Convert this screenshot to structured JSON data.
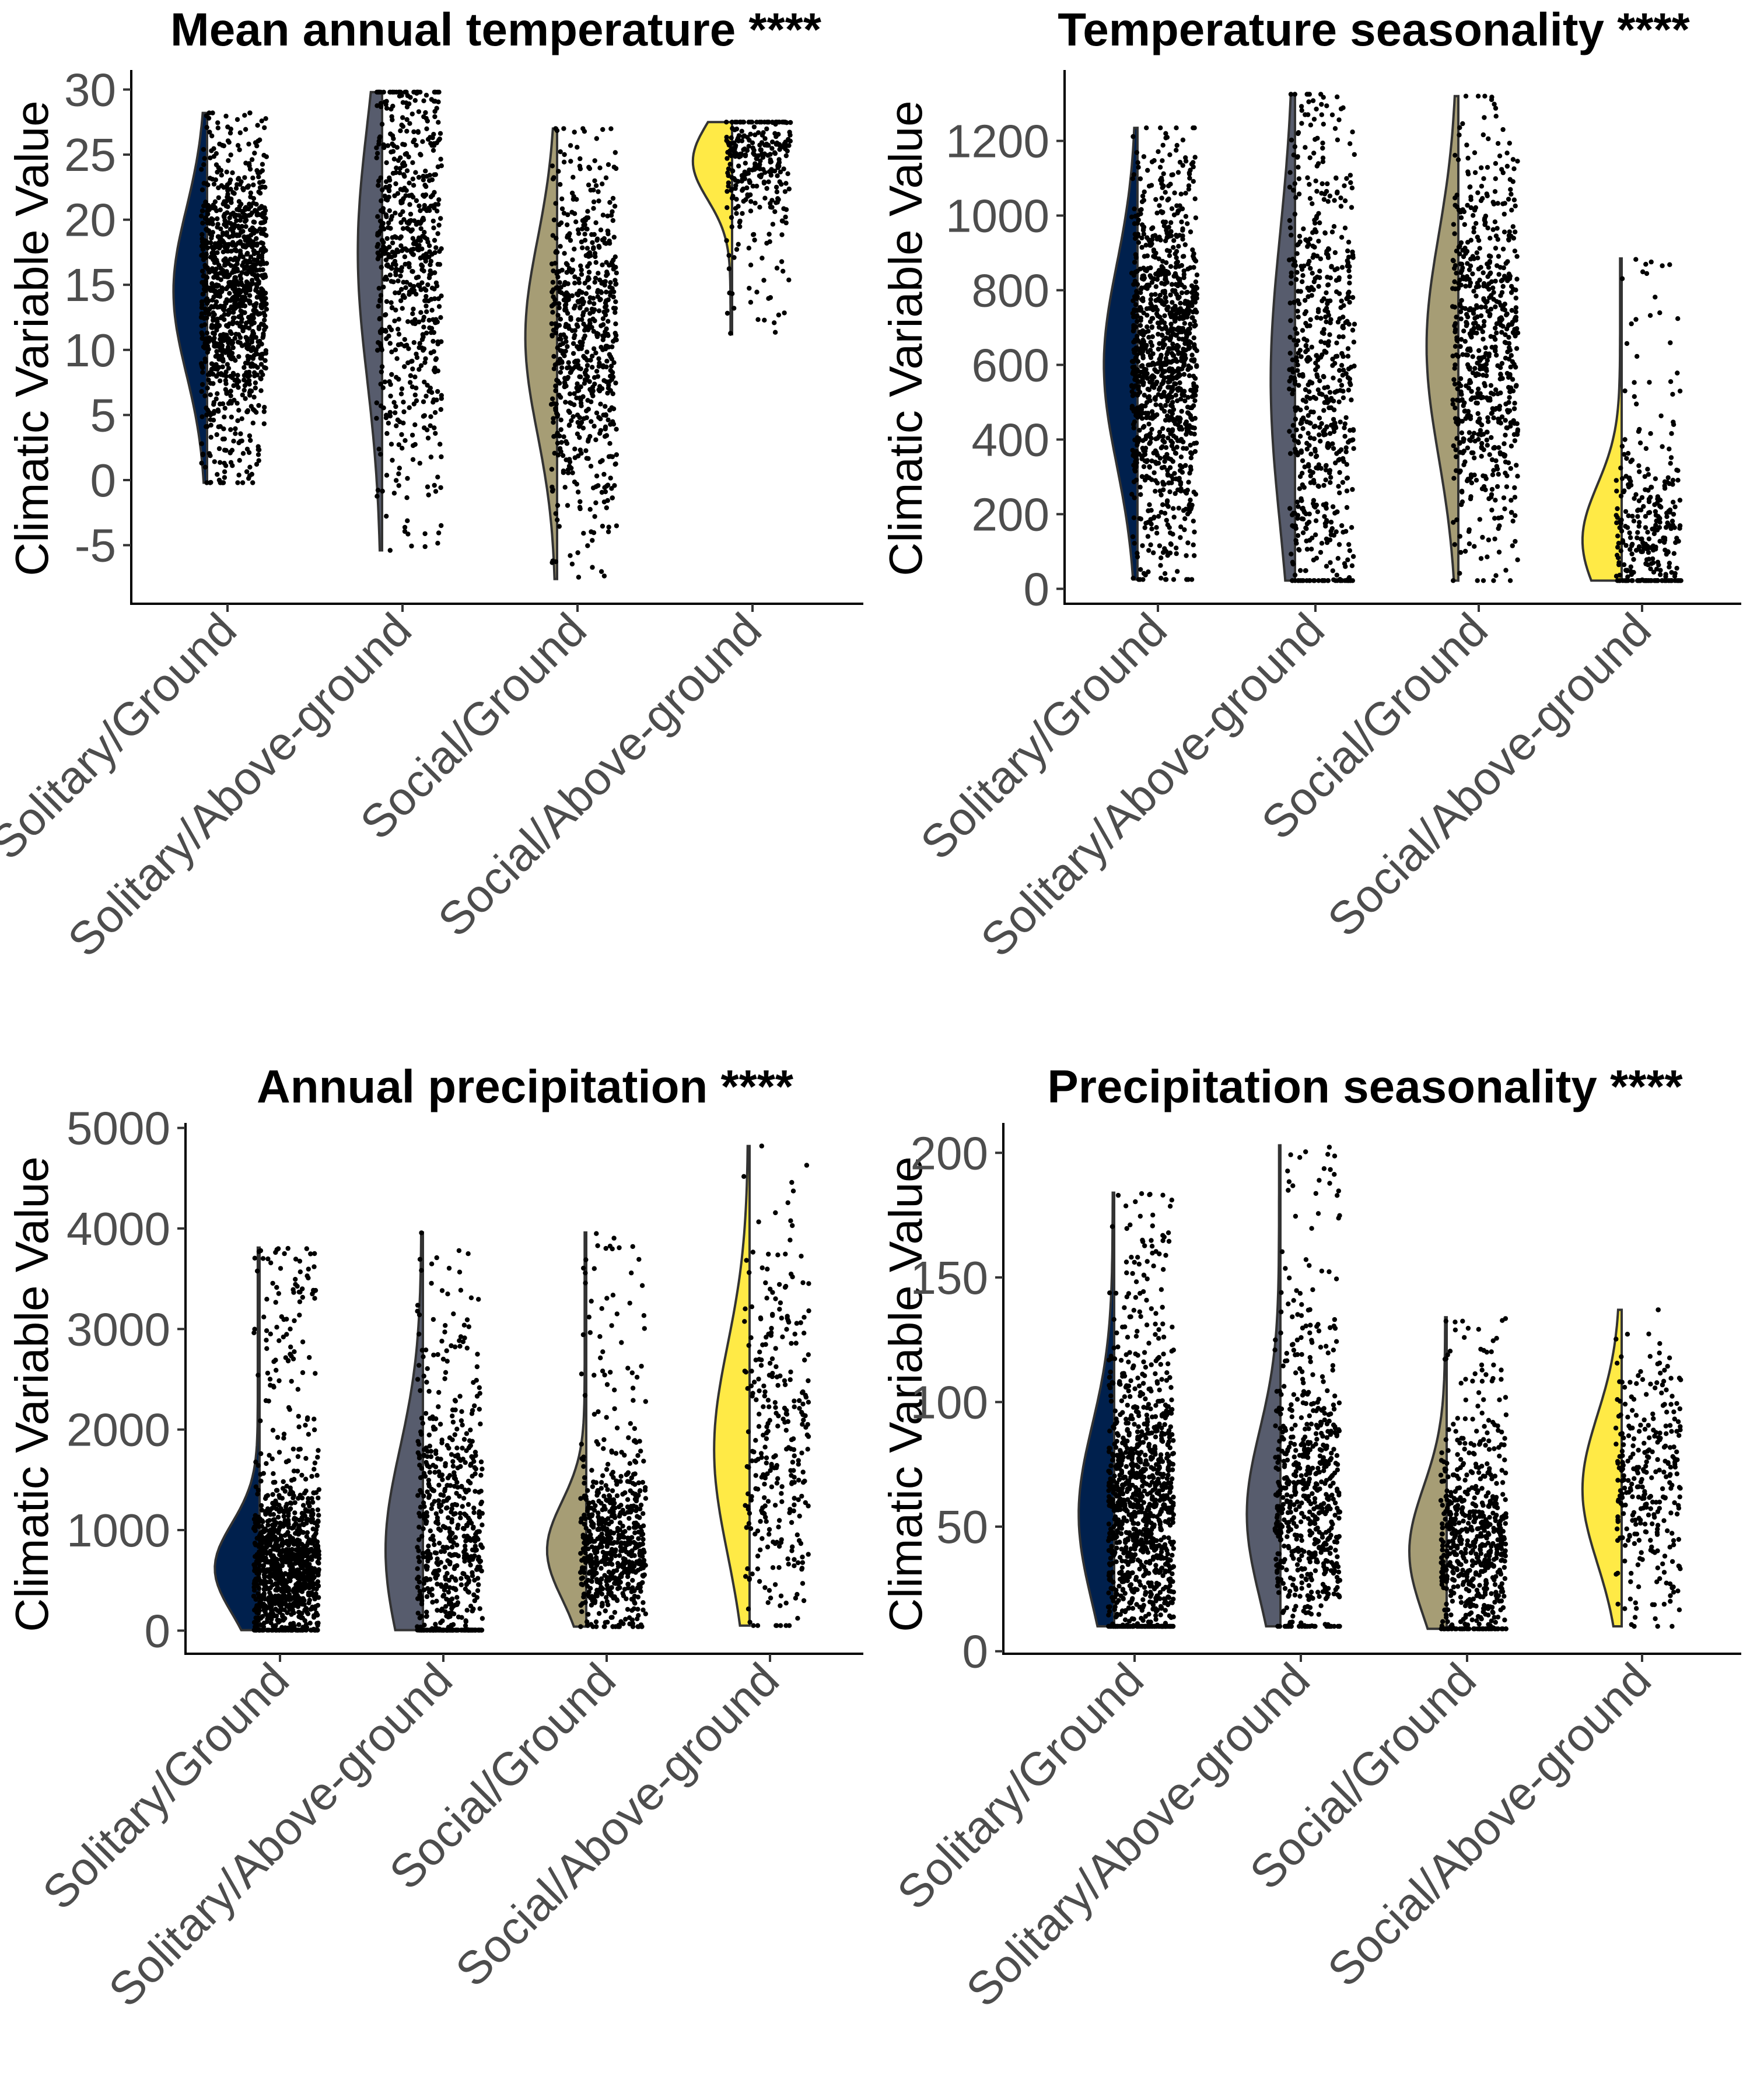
{
  "figure": {
    "categories": [
      "Solitary/Ground",
      "Solitary/Above-ground",
      "Social/Ground",
      "Social/Above-ground"
    ],
    "fill_colors": [
      "#00204d",
      "#575c6d",
      "#a69d75",
      "#ffea46"
    ]
  },
  "chart_data": [
    {
      "type": "violin",
      "title": "Mean annual temperature ****",
      "ylabel": "Climatic Variable Value",
      "xlabel": "",
      "ylim": [
        -9.5,
        31.5
      ],
      "yticks": [
        -5,
        0,
        5,
        10,
        15,
        20,
        25,
        30
      ],
      "ytick_labels": [
        "-5",
        "0",
        "5",
        "10",
        "15",
        "20",
        "25",
        "30"
      ],
      "series": [
        {
          "category": "Solitary/Ground",
          "min": -0.2,
          "max": 28.2,
          "median": 14.5,
          "q1": 10.5,
          "q3": 19.0,
          "n_points": 1100
        },
        {
          "category": "Solitary/Above-ground",
          "min": -5.4,
          "max": 29.8,
          "median": 17.5,
          "q1": 10.5,
          "q3": 23.5,
          "n_points": 650
        },
        {
          "category": "Social/Ground",
          "min": -7.6,
          "max": 27.0,
          "median": 11.0,
          "q1": 7.5,
          "q3": 17.5,
          "n_points": 650
        },
        {
          "category": "Social/Above-ground",
          "min": 11.2,
          "max": 27.5,
          "median": 24.5,
          "q1": 21.5,
          "q3": 25.5,
          "n_points": 300
        }
      ]
    },
    {
      "type": "violin",
      "title": "Temperature seasonality ****",
      "ylabel": "Climatic Variable Value",
      "xlabel": "",
      "ylim": [
        -40,
        1390
      ],
      "yticks": [
        0,
        200,
        400,
        600,
        800,
        1000,
        1200
      ],
      "ytick_labels": [
        "0",
        "200",
        "400",
        "600",
        "800",
        "1000",
        "1200"
      ],
      "series": [
        {
          "category": "Solitary/Ground",
          "min": 25,
          "max": 1235,
          "median": 600,
          "q1": 400,
          "q3": 760,
          "n_points": 1100
        },
        {
          "category": "Solitary/Above-ground",
          "min": 22,
          "max": 1325,
          "median": 560,
          "q1": 200,
          "q3": 720,
          "n_points": 650
        },
        {
          "category": "Social/Ground",
          "min": 22,
          "max": 1320,
          "median": 650,
          "q1": 420,
          "q3": 820,
          "n_points": 650
        },
        {
          "category": "Social/Above-ground",
          "min": 22,
          "max": 885,
          "median": 130,
          "q1": 60,
          "q3": 260,
          "n_points": 300
        }
      ]
    },
    {
      "type": "violin",
      "title": "Annual precipitation ****",
      "ylabel": "Climatic Variable Value",
      "xlabel": "",
      "ylim": [
        -230,
        5050
      ],
      "yticks": [
        0,
        1000,
        2000,
        3000,
        4000,
        5000
      ],
      "ytick_labels": [
        "0",
        "1000",
        "2000",
        "3000",
        "4000",
        "5000"
      ],
      "series": [
        {
          "category": "Solitary/Ground",
          "min": 5,
          "max": 3810,
          "median": 620,
          "q1": 400,
          "q3": 1000,
          "n_points": 1100
        },
        {
          "category": "Solitary/Above-ground",
          "min": 5,
          "max": 3960,
          "median": 800,
          "q1": 550,
          "q3": 1900,
          "n_points": 650
        },
        {
          "category": "Social/Ground",
          "min": 40,
          "max": 3960,
          "median": 800,
          "q1": 550,
          "q3": 1200,
          "n_points": 650
        },
        {
          "category": "Social/Above-ground",
          "min": 50,
          "max": 4820,
          "median": 1800,
          "q1": 1000,
          "q3": 2400,
          "n_points": 300
        }
      ]
    },
    {
      "type": "violin",
      "title": "Precipitation seasonality ****",
      "ylabel": "Climatic Variable Value",
      "xlabel": "",
      "ylim": [
        -1,
        212
      ],
      "yticks": [
        0,
        50,
        100,
        150,
        200
      ],
      "ytick_labels": [
        "0",
        "50",
        "100",
        "150",
        "200"
      ],
      "series": [
        {
          "category": "Solitary/Ground",
          "min": 10,
          "max": 184,
          "median": 55,
          "q1": 32,
          "q3": 80,
          "n_points": 1100
        },
        {
          "category": "Solitary/Above-ground",
          "min": 10,
          "max": 203,
          "median": 55,
          "q1": 35,
          "q3": 80,
          "n_points": 650
        },
        {
          "category": "Social/Ground",
          "min": 9,
          "max": 134,
          "median": 40,
          "q1": 25,
          "q3": 60,
          "n_points": 650
        },
        {
          "category": "Social/Above-ground",
          "min": 10,
          "max": 137,
          "median": 65,
          "q1": 45,
          "q3": 85,
          "n_points": 300
        }
      ]
    }
  ]
}
